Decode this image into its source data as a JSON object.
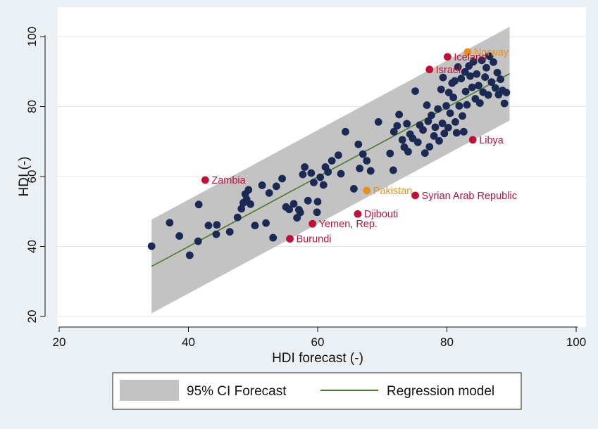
{
  "chart_data": {
    "type": "scatter",
    "xlabel": "HDI forecast (-)",
    "ylabel": "HDI (-)",
    "xlim": [
      20,
      100
    ],
    "ylim": [
      20,
      100
    ],
    "xticks": [
      "20",
      "40",
      "60",
      "80",
      "100"
    ],
    "yticks": [
      "20",
      "40",
      "60",
      "80",
      "100"
    ],
    "grid": "horizontal",
    "colors": {
      "point": "#1b2a55",
      "highlight_red": "#c0103a",
      "highlight_orange": "#e8901a",
      "band": "#c3c3c3",
      "line": "#4c7a2a",
      "background": "#eaf0f4",
      "plot_bg": "#ffffff"
    },
    "ci_band": {
      "name": "95% CI Forecast",
      "x": [
        34.3,
        89.7
      ],
      "upper": [
        47.7,
        102.8
      ],
      "lower": [
        20.9,
        76.0
      ]
    },
    "regression": {
      "name": "Regression model",
      "x": [
        34.3,
        89.7
      ],
      "y": [
        34.3,
        89.4
      ]
    },
    "legend": {
      "position": "bottom",
      "entries": [
        "95% CI Forecast",
        "Regression model"
      ]
    },
    "labeled_points": [
      {
        "label": "Norway",
        "x": 83.2,
        "y": 95.6,
        "color": "orange",
        "anchor": "right"
      },
      {
        "label": "Iceland",
        "x": 80.1,
        "y": 94.2,
        "color": "red",
        "anchor": "right"
      },
      {
        "label": "Israel",
        "x": 77.3,
        "y": 90.6,
        "color": "red",
        "anchor": "right"
      },
      {
        "label": "Libya",
        "x": 84.0,
        "y": 70.5,
        "color": "red",
        "anchor": "right"
      },
      {
        "label": "Zambia",
        "x": 42.6,
        "y": 59.0,
        "color": "red",
        "anchor": "right"
      },
      {
        "label": "Pakistan",
        "x": 67.6,
        "y": 56.0,
        "color": "orange",
        "anchor": "right"
      },
      {
        "label": "Syrian Arab Republic",
        "x": 75.1,
        "y": 54.6,
        "color": "red",
        "anchor": "right"
      },
      {
        "label": "Djibouti",
        "x": 66.2,
        "y": 49.3,
        "color": "red",
        "anchor": "right"
      },
      {
        "label": "Yemen, Rep.",
        "x": 59.2,
        "y": 46.5,
        "color": "red",
        "anchor": "right"
      },
      {
        "label": "Burundi",
        "x": 55.7,
        "y": 42.2,
        "color": "red",
        "anchor": "right"
      }
    ],
    "points": [
      [
        34.3,
        40.1
      ],
      [
        37.1,
        46.8
      ],
      [
        38.6,
        43.0
      ],
      [
        40.2,
        37.5
      ],
      [
        41.5,
        41.5
      ],
      [
        41.6,
        52.0
      ],
      [
        43.1,
        46.0
      ],
      [
        44.3,
        43.5
      ],
      [
        44.4,
        46.2
      ],
      [
        46.4,
        44.2
      ],
      [
        47.6,
        48.3
      ],
      [
        48.2,
        50.8
      ],
      [
        48.5,
        52.5
      ],
      [
        48.8,
        55.0
      ],
      [
        49.0,
        53.5
      ],
      [
        49.3,
        56.2
      ],
      [
        49.6,
        52.1
      ],
      [
        50.3,
        46.0
      ],
      [
        51.4,
        57.5
      ],
      [
        52.0,
        46.7
      ],
      [
        52.5,
        55.3
      ],
      [
        53.1,
        42.5
      ],
      [
        53.6,
        57.2
      ],
      [
        54.5,
        59.4
      ],
      [
        55.1,
        51.3
      ],
      [
        55.6,
        50.6
      ],
      [
        56.3,
        52.2
      ],
      [
        56.8,
        48.2
      ],
      [
        57.1,
        50.5
      ],
      [
        57.3,
        49.7
      ],
      [
        57.7,
        60.6
      ],
      [
        58.0,
        62.7
      ],
      [
        58.5,
        53.1
      ],
      [
        59.0,
        61.0
      ],
      [
        59.4,
        58.3
      ],
      [
        59.9,
        49.8
      ],
      [
        60.0,
        52.8
      ],
      [
        60.4,
        59.8
      ],
      [
        60.9,
        57.6
      ],
      [
        61.2,
        62.7
      ],
      [
        61.6,
        61.3
      ],
      [
        62.2,
        64.5
      ],
      [
        63.2,
        66.1
      ],
      [
        63.6,
        60.8
      ],
      [
        64.3,
        72.8
      ],
      [
        65.6,
        56.5
      ],
      [
        66.3,
        69.2
      ],
      [
        66.5,
        62.3
      ],
      [
        67.0,
        66.4
      ],
      [
        67.6,
        64.5
      ],
      [
        68.2,
        61.6
      ],
      [
        69.4,
        75.6
      ],
      [
        71.2,
        66.6
      ],
      [
        71.7,
        61.8
      ],
      [
        71.8,
        72.8
      ],
      [
        72.3,
        74.5
      ],
      [
        72.6,
        77.7
      ],
      [
        73.1,
        70.5
      ],
      [
        73.4,
        68.4
      ],
      [
        73.8,
        75.1
      ],
      [
        74.0,
        67.1
      ],
      [
        74.3,
        72.1
      ],
      [
        74.7,
        70.9
      ],
      [
        75.1,
        84.4
      ],
      [
        75.5,
        69.8
      ],
      [
        75.8,
        74.7
      ],
      [
        76.3,
        73.3
      ],
      [
        76.6,
        66.7
      ],
      [
        76.9,
        80.4
      ],
      [
        77.1,
        75.8
      ],
      [
        77.3,
        68.5
      ],
      [
        77.6,
        77.5
      ],
      [
        78.0,
        71.6
      ],
      [
        78.2,
        74.1
      ],
      [
        78.6,
        79.3
      ],
      [
        78.8,
        70.2
      ],
      [
        79.1,
        84.9
      ],
      [
        79.3,
        75.2
      ],
      [
        79.6,
        72.3
      ],
      [
        79.9,
        80.2
      ],
      [
        80.2,
        74.0
      ],
      [
        80.5,
        78.1
      ],
      [
        80.8,
        86.7
      ],
      [
        81.0,
        82.6
      ],
      [
        81.3,
        75.6
      ],
      [
        81.5,
        72.5
      ],
      [
        81.7,
        91.3
      ],
      [
        81.9,
        80.2
      ],
      [
        82.2,
        88.0
      ],
      [
        82.4,
        77.3
      ],
      [
        82.6,
        72.8
      ],
      [
        82.9,
        84.3
      ],
      [
        83.1,
        80.5
      ],
      [
        83.4,
        91.6
      ],
      [
        83.6,
        88.7
      ],
      [
        83.9,
        85.5
      ],
      [
        84.1,
        92.8
      ],
      [
        84.4,
        82.2
      ],
      [
        84.6,
        89.3
      ],
      [
        84.9,
        86.0
      ],
      [
        85.1,
        81.0
      ],
      [
        85.4,
        93.2
      ],
      [
        85.6,
        84.1
      ],
      [
        85.9,
        88.4
      ],
      [
        86.1,
        91.1
      ],
      [
        86.4,
        83.3
      ],
      [
        86.6,
        94.4
      ],
      [
        86.9,
        87.0
      ],
      [
        87.2,
        92.7
      ],
      [
        87.5,
        85.3
      ],
      [
        87.8,
        89.7
      ],
      [
        88.0,
        83.4
      ],
      [
        88.3,
        87.8
      ],
      [
        88.6,
        84.6
      ],
      [
        88.9,
        80.9
      ],
      [
        89.2,
        84.0
      ],
      [
        80.3,
        84.0
      ],
      [
        81.2,
        87.3
      ],
      [
        79.4,
        88.3
      ],
      [
        82.8,
        89.9
      ]
    ]
  }
}
